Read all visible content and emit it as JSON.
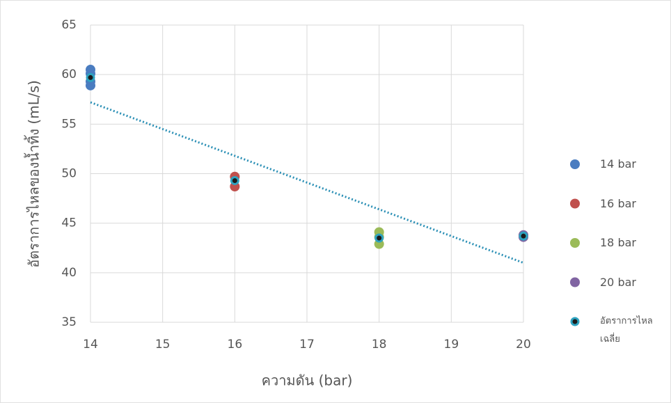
{
  "chart_data": {
    "type": "scatter",
    "x_label": "ความดัน (bar)",
    "y_label": "อัตราการไหลของน้ำทิ้ง (mL/s)",
    "xlim": [
      14,
      20
    ],
    "ylim": [
      35,
      65
    ],
    "xticks": [
      14,
      15,
      16,
      17,
      18,
      19,
      20
    ],
    "yticks": [
      35,
      40,
      45,
      50,
      55,
      60,
      65
    ],
    "grid": true,
    "legend": "right",
    "series": [
      {
        "name": "14 bar",
        "color": "#4a7cc0",
        "x": [
          14,
          14,
          14,
          14
        ],
        "values": [
          60.5,
          60.1,
          59.3,
          58.9
        ]
      },
      {
        "name": "16 bar",
        "color": "#c0504d",
        "x": [
          16,
          16
        ],
        "values": [
          49.7,
          48.7
        ]
      },
      {
        "name": "18 bar",
        "color": "#9bbb59",
        "x": [
          18,
          18,
          18
        ],
        "values": [
          44.1,
          43.6,
          42.9
        ]
      },
      {
        "name": "20 bar",
        "color": "#8064a2",
        "x": [
          20,
          20
        ],
        "values": [
          43.8,
          43.6
        ]
      },
      {
        "name": "อัตราการไหลเฉลี่ย",
        "color": "#1b1b1b",
        "edge": "#2ea3c0",
        "x": [
          14,
          16,
          18,
          20
        ],
        "values": [
          59.7,
          49.3,
          43.5,
          43.7
        ]
      }
    ],
    "trendline": {
      "color": "#2a8fb5",
      "x": [
        14,
        20
      ],
      "values": [
        57.2,
        41.0
      ]
    }
  }
}
